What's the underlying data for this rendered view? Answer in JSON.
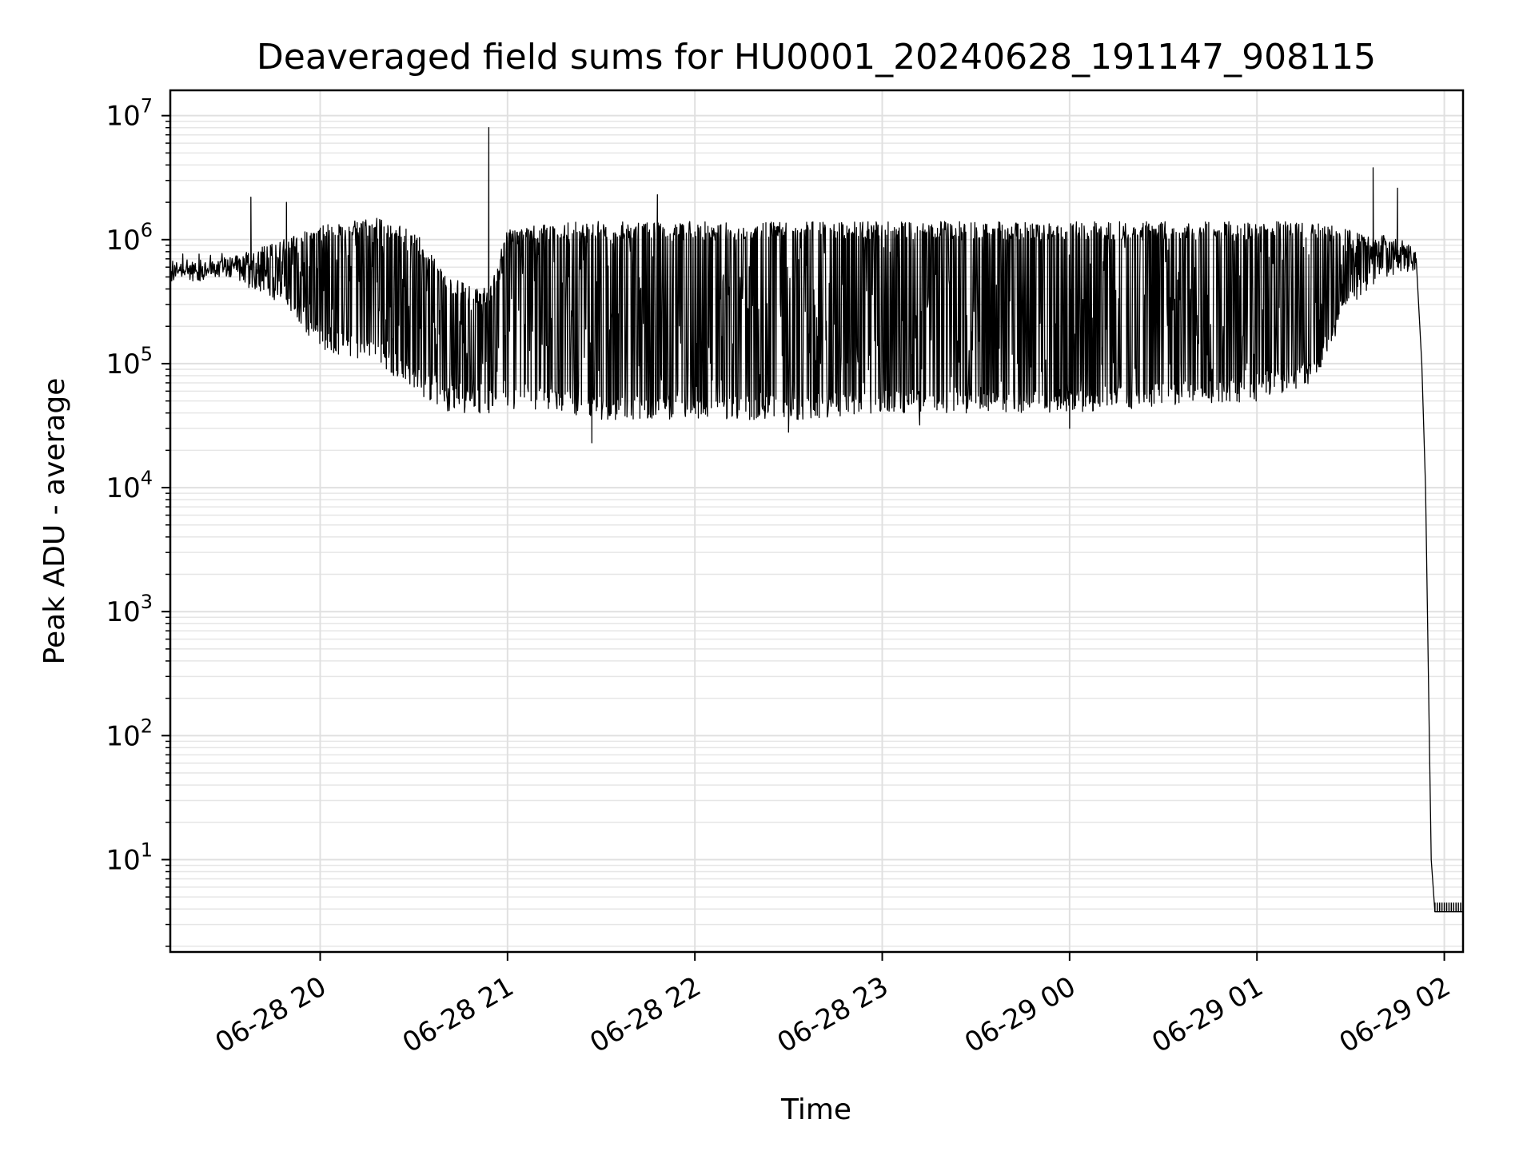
{
  "chart_data": {
    "type": "line",
    "title": "Deaveraged field sums for HU0001_20240628_191147_908115",
    "xlabel": "Time",
    "ylabel": "Peak ADU - average",
    "yscale": "log",
    "ylim": [
      1.8,
      16000000
    ],
    "xlim_hours": [
      19.2,
      26.1
    ],
    "grid": true,
    "x_ticks": [
      {
        "value": 20,
        "label": "06-28 20"
      },
      {
        "value": 21,
        "label": "06-28 21"
      },
      {
        "value": 22,
        "label": "06-28 22"
      },
      {
        "value": 23,
        "label": "06-28 23"
      },
      {
        "value": 24,
        "label": "06-29 00"
      },
      {
        "value": 25,
        "label": "06-29 01"
      },
      {
        "value": 26,
        "label": "06-29 02"
      }
    ],
    "y_ticks": [
      {
        "value": 10,
        "base": "10",
        "exp": "1"
      },
      {
        "value": 100,
        "base": "10",
        "exp": "2"
      },
      {
        "value": 1000,
        "base": "10",
        "exp": "3"
      },
      {
        "value": 10000,
        "base": "10",
        "exp": "4"
      },
      {
        "value": 100000,
        "base": "10",
        "exp": "5"
      },
      {
        "value": 1000000,
        "base": "10",
        "exp": "6"
      },
      {
        "value": 10000000,
        "base": "10",
        "exp": "7"
      }
    ],
    "series": [
      {
        "name": "Deaveraged field sum",
        "color": "#000000",
        "envelope": {
          "x": [
            19.2,
            19.5,
            19.8,
            20.0,
            20.3,
            20.5,
            20.7,
            20.9,
            21.0,
            21.3,
            21.5,
            22.0,
            22.5,
            23.0,
            23.5,
            24.0,
            24.5,
            25.0,
            25.3,
            25.5,
            25.6,
            25.7,
            25.8,
            25.85
          ],
          "upper": [
            600000,
            700000,
            1000000,
            1300000,
            1500000,
            1200000,
            500000,
            400000,
            1200000,
            1400000,
            1400000,
            1400000,
            1400000,
            1400000,
            1400000,
            1400000,
            1400000,
            1400000,
            1400000,
            1200000,
            1100000,
            1100000,
            1000000,
            800000
          ],
          "lower": [
            500000,
            500000,
            300000,
            130000,
            100000,
            60000,
            40000,
            40000,
            40000,
            40000,
            35000,
            35000,
            35000,
            40000,
            40000,
            40000,
            45000,
            50000,
            70000,
            300000,
            400000,
            500000,
            550000,
            500000
          ]
        },
        "spikes": [
          {
            "x": 20.9,
            "y": 8000000
          },
          {
            "x": 21.8,
            "y": 2300000
          },
          {
            "x": 19.63,
            "y": 2200000
          },
          {
            "x": 19.82,
            "y": 2000000
          },
          {
            "x": 25.75,
            "y": 2600000
          },
          {
            "x": 25.62,
            "y": 3800000
          }
        ],
        "dips": [
          {
            "x": 21.45,
            "y": 23000
          },
          {
            "x": 22.5,
            "y": 28000
          },
          {
            "x": 23.2,
            "y": 32000
          },
          {
            "x": 24.0,
            "y": 30000
          }
        ],
        "falloff": {
          "x": [
            25.85,
            25.88,
            25.9,
            25.92,
            25.93,
            25.95
          ],
          "y": [
            500000,
            100000,
            10000,
            100,
            10,
            3.8
          ]
        },
        "floor": {
          "x": [
            25.95,
            26.1
          ],
          "y": 3.8,
          "hatch_top": 4.5
        }
      }
    ]
  }
}
